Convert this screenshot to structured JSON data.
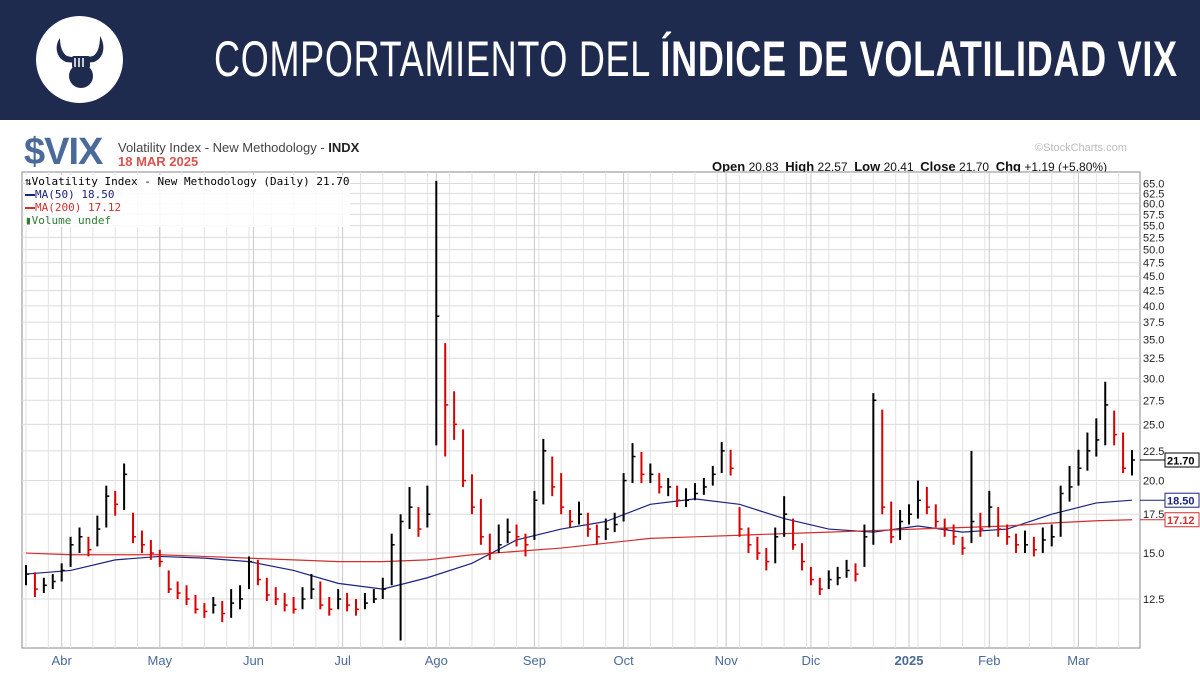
{
  "header": {
    "title_light": "COMPORTAMIENTO DEL ",
    "title_bold": "ÍNDICE DE VOLATILIDAD VIX",
    "logo_icon": "bull-horns-fist-icon"
  },
  "chart_info": {
    "symbol": "$VIX",
    "description": "Volatility Index - New Methodology - ",
    "exchange": "INDX",
    "date": "18 MAR 2025",
    "copyright": "©StockCharts.com",
    "open_label": "Open",
    "open": "20.83",
    "high_label": "High",
    "high": "22.57",
    "low_label": "Low",
    "low": "20.41",
    "close_label": "Close",
    "close": "21.70",
    "chg_label": "Chg",
    "chg": "+1.19 (+5.80%)"
  },
  "legend": {
    "main": "Volatility Index - New Methodology (Daily) 21.70",
    "ma50": "MA(50) 18.50",
    "ma200": "MA(200) 17.12",
    "volume": "Volume undef"
  },
  "chart_data": {
    "type": "ohlc-bar",
    "scale": "log",
    "ylim": [
      10.5,
      66
    ],
    "yticks": [
      12.5,
      15,
      17.5,
      20,
      22.5,
      25,
      27.5,
      30,
      32.5,
      35,
      37.5,
      40,
      42.5,
      45,
      47.5,
      50,
      52.5,
      55,
      57.5,
      60,
      62.5,
      65
    ],
    "months": [
      {
        "label": "Abr",
        "i": 4
      },
      {
        "label": "May",
        "i": 15
      },
      {
        "label": "Jun",
        "i": 25.5
      },
      {
        "label": "Jul",
        "i": 35.5
      },
      {
        "label": "Ago",
        "i": 46
      },
      {
        "label": "Sep",
        "i": 57
      },
      {
        "label": "Oct",
        "i": 67
      },
      {
        "label": "Nov",
        "i": 78.5
      },
      {
        "label": "Dic",
        "i": 88
      },
      {
        "label": "2025",
        "i": 99,
        "bold": true
      },
      {
        "label": "Feb",
        "i": 108
      },
      {
        "label": "Mar",
        "i": 118
      }
    ],
    "bars": [
      [
        14.3,
        13.2,
        13.8
      ],
      [
        13.9,
        12.6,
        13.0
      ],
      [
        13.6,
        12.8,
        13.2
      ],
      [
        13.8,
        13.0,
        13.4
      ],
      [
        14.4,
        13.4,
        14.0
      ],
      [
        16.0,
        14.2,
        15.5
      ],
      [
        16.6,
        15.0,
        16.0
      ],
      [
        16.0,
        14.8,
        15.2
      ],
      [
        17.4,
        15.4,
        16.5
      ],
      [
        19.6,
        16.6,
        18.8
      ],
      [
        19.2,
        17.4,
        18.2
      ],
      [
        21.4,
        17.8,
        20.5
      ],
      [
        17.6,
        15.6,
        16.0
      ],
      [
        16.4,
        15.0,
        15.5
      ],
      [
        15.8,
        14.6,
        15.0
      ],
      [
        15.2,
        14.2,
        14.5
      ],
      [
        14.0,
        12.8,
        13.0
      ],
      [
        13.4,
        12.5,
        12.8
      ],
      [
        13.2,
        12.2,
        12.5
      ],
      [
        12.7,
        11.8,
        12.0
      ],
      [
        12.3,
        11.6,
        11.9
      ],
      [
        12.6,
        11.8,
        12.2
      ],
      [
        12.4,
        11.4,
        11.8
      ],
      [
        13.0,
        11.6,
        12.3
      ],
      [
        13.2,
        12.0,
        12.5
      ],
      [
        14.8,
        13.0,
        14.5
      ],
      [
        14.6,
        13.2,
        13.5
      ],
      [
        13.6,
        12.4,
        12.7
      ],
      [
        13.1,
        12.2,
        12.5
      ],
      [
        12.8,
        11.9,
        12.2
      ],
      [
        12.6,
        11.8,
        12.0
      ],
      [
        13.1,
        12.0,
        12.5
      ],
      [
        13.8,
        12.5,
        13.0
      ],
      [
        13.4,
        12.0,
        12.2
      ],
      [
        12.6,
        11.7,
        12.0
      ],
      [
        13.0,
        12.0,
        12.5
      ],
      [
        12.8,
        11.9,
        12.2
      ],
      [
        12.5,
        11.7,
        12.0
      ],
      [
        12.8,
        12.0,
        12.3
      ],
      [
        13.0,
        12.3,
        12.5
      ],
      [
        13.6,
        12.5,
        13.0
      ],
      [
        16.2,
        13.2,
        15.5
      ],
      [
        17.5,
        10.6,
        17.0
      ],
      [
        19.5,
        16.5,
        18.0
      ],
      [
        18.0,
        16.0,
        16.5
      ],
      [
        19.6,
        16.6,
        17.5
      ],
      [
        65.7,
        23.0,
        38.4
      ],
      [
        34.5,
        22.0,
        27.0
      ],
      [
        28.5,
        23.5,
        25.0
      ],
      [
        24.5,
        19.5,
        20.0
      ],
      [
        20.5,
        17.5,
        18.0
      ],
      [
        18.6,
        15.5,
        16.0
      ],
      [
        16.2,
        14.6,
        15.0
      ],
      [
        16.8,
        15.0,
        15.5
      ],
      [
        17.2,
        15.6,
        16.3
      ],
      [
        16.8,
        15.4,
        16.0
      ],
      [
        16.2,
        14.8,
        15.5
      ],
      [
        19.2,
        15.8,
        18.5
      ],
      [
        23.6,
        18.2,
        22.5
      ],
      [
        22.0,
        18.8,
        19.5
      ],
      [
        20.6,
        17.5,
        18.0
      ],
      [
        17.8,
        16.6,
        17.0
      ],
      [
        18.4,
        16.8,
        17.5
      ],
      [
        17.6,
        16.0,
        16.5
      ],
      [
        16.8,
        15.5,
        16.0
      ],
      [
        17.2,
        15.8,
        16.5
      ],
      [
        17.6,
        16.3,
        16.8
      ],
      [
        20.6,
        17.0,
        20.0
      ],
      [
        23.2,
        19.8,
        22.0
      ],
      [
        22.4,
        19.8,
        20.5
      ],
      [
        21.4,
        19.8,
        20.5
      ],
      [
        20.6,
        19.0,
        19.5
      ],
      [
        20.2,
        18.8,
        19.5
      ],
      [
        19.6,
        18.0,
        18.5
      ],
      [
        19.4,
        18.0,
        18.5
      ],
      [
        19.8,
        18.5,
        19.0
      ],
      [
        20.2,
        18.9,
        19.5
      ],
      [
        21.2,
        19.6,
        20.5
      ],
      [
        23.3,
        20.6,
        22.5
      ],
      [
        22.6,
        20.4,
        21.0
      ],
      [
        18.0,
        16.0,
        16.5
      ],
      [
        16.6,
        15.0,
        15.5
      ],
      [
        16.0,
        14.6,
        15.0
      ],
      [
        15.3,
        14.0,
        14.5
      ],
      [
        16.6,
        14.4,
        16.0
      ],
      [
        18.8,
        16.0,
        17.5
      ],
      [
        17.2,
        15.2,
        15.5
      ],
      [
        15.6,
        14.0,
        14.5
      ],
      [
        14.2,
        13.2,
        13.5
      ],
      [
        13.6,
        12.7,
        13.0
      ],
      [
        14.0,
        13.0,
        13.5
      ],
      [
        14.2,
        13.2,
        13.6
      ],
      [
        14.6,
        13.6,
        14.0
      ],
      [
        14.4,
        13.4,
        13.8
      ],
      [
        16.8,
        14.2,
        16.0
      ],
      [
        28.3,
        15.5,
        27.5
      ],
      [
        26.5,
        17.5,
        18.0
      ],
      [
        18.4,
        15.6,
        16.0
      ],
      [
        17.8,
        15.8,
        17.0
      ],
      [
        18.2,
        16.8,
        17.5
      ],
      [
        20.0,
        17.2,
        18.5
      ],
      [
        19.5,
        17.5,
        18.0
      ],
      [
        18.2,
        16.6,
        17.0
      ],
      [
        17.2,
        16.0,
        16.5
      ],
      [
        16.8,
        15.5,
        16.0
      ],
      [
        16.0,
        14.9,
        15.3
      ],
      [
        22.5,
        15.6,
        17.0
      ],
      [
        17.6,
        16.0,
        16.5
      ],
      [
        19.2,
        16.6,
        18.0
      ],
      [
        18.0,
        16.0,
        16.5
      ],
      [
        16.8,
        15.5,
        16.0
      ],
      [
        16.2,
        15.0,
        15.5
      ],
      [
        16.4,
        15.0,
        15.5
      ],
      [
        16.0,
        14.8,
        15.2
      ],
      [
        16.6,
        15.0,
        15.8
      ],
      [
        16.8,
        15.4,
        16.0
      ],
      [
        19.6,
        16.0,
        19.0
      ],
      [
        21.2,
        18.4,
        19.5
      ],
      [
        22.6,
        19.6,
        21.0
      ],
      [
        24.2,
        20.8,
        22.5
      ],
      [
        25.6,
        22.0,
        23.5
      ],
      [
        29.6,
        23.0,
        27.0
      ],
      [
        26.4,
        23.0,
        24.0
      ],
      [
        24.2,
        20.6,
        21.0
      ],
      [
        22.57,
        20.41,
        21.7
      ]
    ],
    "series": [
      {
        "name": "MA(50)",
        "color": "#1a237e",
        "anchor_step": 5,
        "values": [
          13.8,
          14.0,
          14.6,
          14.8,
          14.7,
          14.5,
          14.0,
          13.3,
          13.0,
          13.6,
          14.4,
          15.8,
          16.5,
          17.0,
          18.2,
          18.6,
          18.2,
          17.2,
          16.5,
          16.3,
          16.7,
          16.3,
          16.5,
          17.5,
          18.3,
          18.5
        ],
        "last": "18.50"
      },
      {
        "name": "MA(200)",
        "color": "#d32f2f",
        "anchor_step": 5,
        "values": [
          15.0,
          14.9,
          14.9,
          14.9,
          14.8,
          14.7,
          14.6,
          14.5,
          14.5,
          14.6,
          14.9,
          15.1,
          15.3,
          15.6,
          15.9,
          16.0,
          16.1,
          16.2,
          16.3,
          16.4,
          16.5,
          16.6,
          16.7,
          16.9,
          17.05,
          17.12
        ],
        "last": "17.12"
      }
    ],
    "last_close": "21.70",
    "up_color": "#000000",
    "down_color": "#d90000"
  }
}
